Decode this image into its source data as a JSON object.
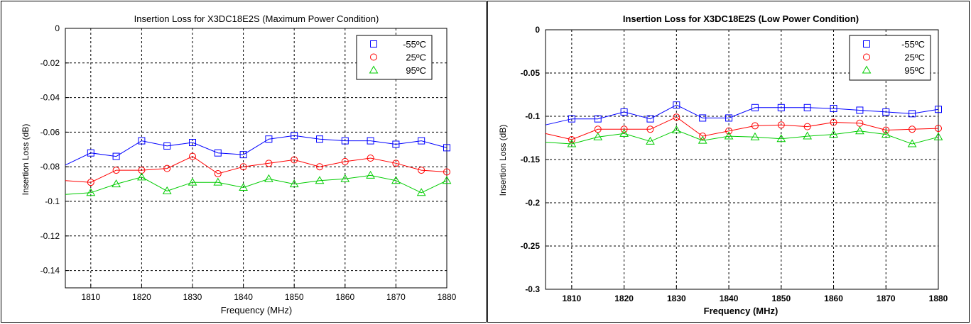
{
  "chart_data": [
    {
      "type": "line",
      "title": "Insertion Loss for X3DC18E2S (Maximum Power Condition)",
      "xlabel": "Frequency (MHz)",
      "ylabel": "Insertion Loss (dB)",
      "xlim": [
        1805,
        1880
      ],
      "ylim": [
        -0.15,
        0
      ],
      "xticks": [
        1810,
        1820,
        1830,
        1840,
        1850,
        1860,
        1870,
        1880
      ],
      "xtick_labels": [
        "1810",
        "1820",
        "1830",
        "1840",
        "1850",
        "1860",
        "1870",
        "1880"
      ],
      "yticks": [
        0,
        -0.02,
        -0.04,
        -0.06,
        -0.08,
        -0.1,
        -0.12,
        -0.14
      ],
      "ytick_labels": [
        "0",
        "-0.02",
        "-0.04",
        "-0.06",
        "-0.08",
        "-0.1",
        "-0.12",
        "-0.14"
      ],
      "grid": true,
      "legend_position": "top-right",
      "x": [
        1805,
        1810,
        1815,
        1820,
        1825,
        1830,
        1835,
        1840,
        1845,
        1850,
        1855,
        1860,
        1865,
        1870,
        1875,
        1880
      ],
      "series": [
        {
          "name": "-55ºC",
          "color": "#0000ff",
          "marker": "square",
          "values": [
            -0.079,
            -0.072,
            -0.074,
            -0.065,
            -0.068,
            -0.066,
            -0.072,
            -0.073,
            -0.064,
            -0.062,
            -0.064,
            -0.065,
            -0.065,
            -0.067,
            -0.065,
            -0.069
          ]
        },
        {
          "name": "25ºC",
          "color": "#ff0000",
          "marker": "circle",
          "values": [
            -0.088,
            -0.089,
            -0.082,
            -0.082,
            -0.081,
            -0.074,
            -0.084,
            -0.08,
            -0.078,
            -0.076,
            -0.08,
            -0.077,
            -0.075,
            -0.078,
            -0.082,
            -0.083
          ]
        },
        {
          "name": "95ºC",
          "color": "#00cc00",
          "marker": "triangle",
          "values": [
            -0.096,
            -0.095,
            -0.09,
            -0.086,
            -0.094,
            -0.089,
            -0.089,
            -0.092,
            -0.087,
            -0.09,
            -0.088,
            -0.087,
            -0.085,
            -0.088,
            -0.095,
            -0.088
          ]
        }
      ]
    },
    {
      "type": "line",
      "title": "Insertion Loss for X3DC18E2S (Low Power Condition)",
      "xlabel": "Frequency (MHz)",
      "ylabel": "Insertion Loss (dB)",
      "xlim": [
        1805,
        1880
      ],
      "ylim": [
        -0.3,
        0
      ],
      "xticks": [
        1810,
        1820,
        1830,
        1840,
        1850,
        1860,
        1870,
        1880
      ],
      "xtick_labels": [
        "1810",
        "1820",
        "1830",
        "1840",
        "1850",
        "1860",
        "1870",
        "1880"
      ],
      "yticks": [
        0,
        -0.05,
        -0.1,
        -0.15,
        -0.2,
        -0.25,
        -0.3
      ],
      "ytick_labels": [
        "0",
        "-0.05",
        "-0.1",
        "-0.15",
        "-0.2",
        "-0.25",
        "-0.3"
      ],
      "grid": true,
      "legend_position": "top-right",
      "x": [
        1805,
        1810,
        1815,
        1820,
        1825,
        1830,
        1835,
        1840,
        1845,
        1850,
        1855,
        1860,
        1865,
        1870,
        1875,
        1880
      ],
      "series": [
        {
          "name": "-55ºC",
          "color": "#0000ff",
          "marker": "square",
          "values": [
            -0.11,
            -0.103,
            -0.103,
            -0.095,
            -0.103,
            -0.087,
            -0.102,
            -0.102,
            -0.09,
            -0.09,
            -0.09,
            -0.091,
            -0.093,
            -0.095,
            -0.097,
            -0.092
          ]
        },
        {
          "name": "25ºC",
          "color": "#ff0000",
          "marker": "circle",
          "values": [
            -0.12,
            -0.127,
            -0.115,
            -0.115,
            -0.115,
            -0.101,
            -0.123,
            -0.117,
            -0.111,
            -0.11,
            -0.112,
            -0.107,
            -0.108,
            -0.116,
            -0.115,
            -0.114
          ]
        },
        {
          "name": "95ºC",
          "color": "#00cc00",
          "marker": "triangle",
          "values": [
            -0.13,
            -0.132,
            -0.124,
            -0.12,
            -0.129,
            -0.116,
            -0.128,
            -0.123,
            -0.124,
            -0.126,
            -0.123,
            -0.121,
            -0.117,
            -0.121,
            -0.132,
            -0.124
          ]
        }
      ]
    }
  ]
}
